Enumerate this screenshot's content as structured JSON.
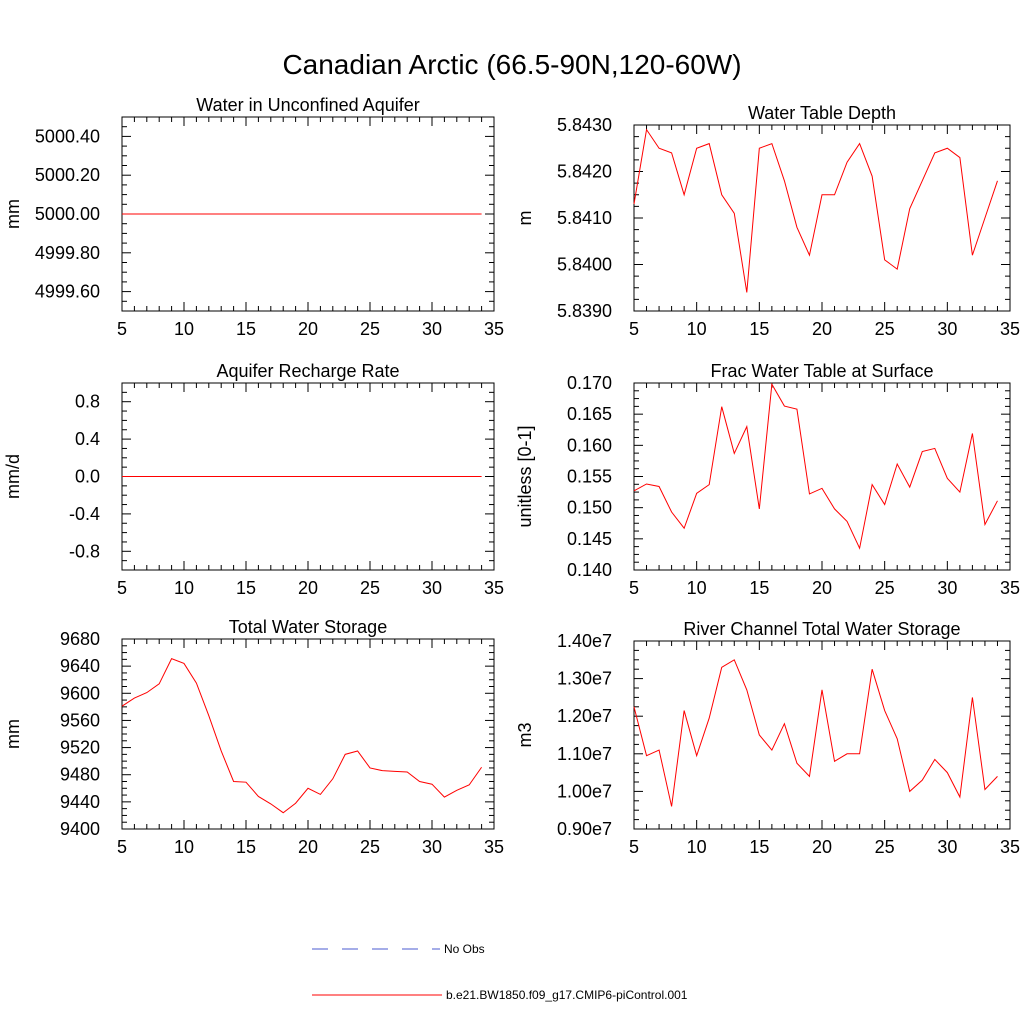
{
  "title": "Canadian Arctic (66.5-90N,120-60W)",
  "colors": {
    "series": "#ff0000",
    "obs": "#4b5bd1",
    "axis": "#000000"
  },
  "legend": {
    "items": [
      {
        "label": "No Obs",
        "style": "dashed",
        "color": "#4b5bd1"
      },
      {
        "label": "b.e21.BW1850.f09_g17.CMIP6-piControl.001",
        "style": "solid",
        "color": "#ff0000"
      }
    ]
  },
  "chart_data": [
    {
      "type": "line",
      "title": "Water in Unconfined Aquifer",
      "ylabel": "mm",
      "xlim": [
        5,
        35
      ],
      "ylim": [
        4999.5,
        5000.5
      ],
      "xticks": [
        5,
        10,
        15,
        20,
        25,
        30,
        35
      ],
      "yticks": [
        4999.6,
        4999.8,
        5000.0,
        5000.2,
        5000.4
      ],
      "ytick_labels": [
        "4999.60",
        "4999.80",
        "5000.00",
        "5000.20",
        "5000.40"
      ],
      "x": [
        5,
        6,
        7,
        8,
        9,
        10,
        11,
        12,
        13,
        14,
        15,
        16,
        17,
        18,
        19,
        20,
        21,
        22,
        23,
        24,
        25,
        26,
        27,
        28,
        29,
        30,
        31,
        32,
        33,
        34
      ],
      "series": [
        {
          "name": "b.e21.BW1850.f09_g17.CMIP6-piControl.001",
          "values": [
            5000,
            5000,
            5000,
            5000,
            5000,
            5000,
            5000,
            5000,
            5000,
            5000,
            5000,
            5000,
            5000,
            5000,
            5000,
            5000,
            5000,
            5000,
            5000,
            5000,
            5000,
            5000,
            5000,
            5000,
            5000,
            5000,
            5000,
            5000,
            5000,
            5000
          ]
        }
      ]
    },
    {
      "type": "line",
      "title": "Water Table Depth",
      "ylabel": "m",
      "xlim": [
        5,
        35
      ],
      "ylim": [
        5.839,
        5.843
      ],
      "xticks": [
        5,
        10,
        15,
        20,
        25,
        30,
        35
      ],
      "yticks": [
        5.839,
        5.84,
        5.841,
        5.842,
        5.843
      ],
      "ytick_labels": [
        "5.8390",
        "5.8400",
        "5.8410",
        "5.8420",
        "5.8430"
      ],
      "x": [
        5,
        6,
        7,
        8,
        9,
        10,
        11,
        12,
        13,
        14,
        15,
        16,
        17,
        18,
        19,
        20,
        21,
        22,
        23,
        24,
        25,
        26,
        27,
        28,
        29,
        30,
        31,
        32,
        33,
        34
      ],
      "series": [
        {
          "name": "b.e21.BW1850.f09_g17.CMIP6-piControl.001",
          "values": [
            5.8413,
            5.8429,
            5.8425,
            5.8424,
            5.8415,
            5.8425,
            5.8426,
            5.8415,
            5.8411,
            5.8394,
            5.8425,
            5.8426,
            5.8418,
            5.8408,
            5.8402,
            5.8415,
            5.8415,
            5.8422,
            5.8426,
            5.8419,
            5.8401,
            5.8399,
            5.8412,
            5.8418,
            5.8424,
            5.8425,
            5.8423,
            5.8402,
            5.841,
            5.8418
          ]
        }
      ]
    },
    {
      "type": "line",
      "title": "Aquifer Recharge Rate",
      "ylabel": "mm/d",
      "xlim": [
        5,
        35
      ],
      "ylim": [
        -1.0,
        1.0
      ],
      "xticks": [
        5,
        10,
        15,
        20,
        25,
        30,
        35
      ],
      "yticks": [
        -0.8,
        -0.4,
        0.0,
        0.4,
        0.8
      ],
      "ytick_labels": [
        "-0.8",
        "-0.4",
        "0.0",
        "0.4",
        "0.8"
      ],
      "x": [
        5,
        6,
        7,
        8,
        9,
        10,
        11,
        12,
        13,
        14,
        15,
        16,
        17,
        18,
        19,
        20,
        21,
        22,
        23,
        24,
        25,
        26,
        27,
        28,
        29,
        30,
        31,
        32,
        33,
        34
      ],
      "series": [
        {
          "name": "b.e21.BW1850.f09_g17.CMIP6-piControl.001",
          "values": [
            0,
            0,
            0,
            0,
            0,
            0,
            0,
            0,
            0,
            0,
            0,
            0,
            0,
            0,
            0,
            0,
            0,
            0,
            0,
            0,
            0,
            0,
            0,
            0,
            0,
            0,
            0,
            0,
            0,
            0
          ]
        }
      ]
    },
    {
      "type": "line",
      "title": "Frac Water Table at Surface",
      "ylabel": "unitless [0-1]",
      "xlim": [
        5,
        35
      ],
      "ylim": [
        0.14,
        0.17
      ],
      "xticks": [
        5,
        10,
        15,
        20,
        25,
        30,
        35
      ],
      "yticks": [
        0.14,
        0.145,
        0.15,
        0.155,
        0.16,
        0.165,
        0.17
      ],
      "ytick_labels": [
        "0.140",
        "0.145",
        "0.150",
        "0.155",
        "0.160",
        "0.165",
        "0.170"
      ],
      "x": [
        5,
        6,
        7,
        8,
        9,
        10,
        11,
        12,
        13,
        14,
        15,
        16,
        17,
        18,
        19,
        20,
        21,
        22,
        23,
        24,
        25,
        26,
        27,
        28,
        29,
        30,
        31,
        32,
        33,
        34
      ],
      "series": [
        {
          "name": "b.e21.BW1850.f09_g17.CMIP6-piControl.001",
          "values": [
            0.1527,
            0.1538,
            0.1534,
            0.1493,
            0.1467,
            0.1523,
            0.1537,
            0.1662,
            0.1587,
            0.163,
            0.1498,
            0.1698,
            0.1663,
            0.1658,
            0.1522,
            0.1531,
            0.1498,
            0.1478,
            0.1435,
            0.1537,
            0.1505,
            0.157,
            0.1533,
            0.159,
            0.1595,
            0.1547,
            0.1525,
            0.1619,
            0.1473,
            0.1511
          ]
        }
      ]
    },
    {
      "type": "line",
      "title": "Total Water Storage",
      "ylabel": "mm",
      "xlim": [
        5,
        35
      ],
      "ylim": [
        9400,
        9680
      ],
      "xticks": [
        5,
        10,
        15,
        20,
        25,
        30,
        35
      ],
      "yticks": [
        9400,
        9440,
        9480,
        9520,
        9560,
        9600,
        9640,
        9680
      ],
      "ytick_labels": [
        "9400",
        "9440",
        "9480",
        "9520",
        "9560",
        "9600",
        "9640",
        "9680"
      ],
      "x": [
        5,
        6,
        7,
        8,
        9,
        10,
        11,
        12,
        13,
        14,
        15,
        16,
        17,
        18,
        19,
        20,
        21,
        22,
        23,
        24,
        25,
        26,
        27,
        28,
        29,
        30,
        31,
        32,
        33,
        34
      ],
      "series": [
        {
          "name": "b.e21.BW1850.f09_g17.CMIP6-piControl.001",
          "values": [
            9581,
            9593,
            9601,
            9614,
            9651,
            9644,
            9615,
            9567,
            9515,
            9470,
            9469,
            9448,
            9437,
            9424,
            9438,
            9460,
            9451,
            9474,
            9510,
            9515,
            9490,
            9486,
            9485,
            9484,
            9470,
            9466,
            9447,
            9457,
            9465,
            9491
          ]
        }
      ]
    },
    {
      "type": "line",
      "title": "River Channel Total Water Storage",
      "ylabel": "m3",
      "xlim": [
        5,
        35
      ],
      "ylim": [
        9000000,
        14000000
      ],
      "xticks": [
        5,
        10,
        15,
        20,
        25,
        30,
        35
      ],
      "yticks": [
        9000000,
        10000000,
        11000000,
        12000000,
        13000000,
        14000000
      ],
      "ytick_labels": [
        "0.90e7",
        "1.00e7",
        "1.10e7",
        "1.20e7",
        "1.30e7",
        "1.40e7"
      ],
      "x": [
        5,
        6,
        7,
        8,
        9,
        10,
        11,
        12,
        13,
        14,
        15,
        16,
        17,
        18,
        19,
        20,
        21,
        22,
        23,
        24,
        25,
        26,
        27,
        28,
        29,
        30,
        31,
        32,
        33,
        34
      ],
      "series": [
        {
          "name": "b.e21.BW1850.f09_g17.CMIP6-piControl.001",
          "values": [
            12250000,
            10950000,
            11100000,
            9600000,
            12150000,
            10950000,
            11950000,
            13300000,
            13500000,
            12700000,
            11500000,
            11100000,
            11800000,
            10750000,
            10400000,
            12700000,
            10800000,
            11000000,
            11000000,
            13250000,
            12150000,
            11400000,
            10000000,
            10300000,
            10850000,
            10500000,
            9850000,
            12500000,
            10050000,
            10400000
          ]
        }
      ]
    }
  ]
}
